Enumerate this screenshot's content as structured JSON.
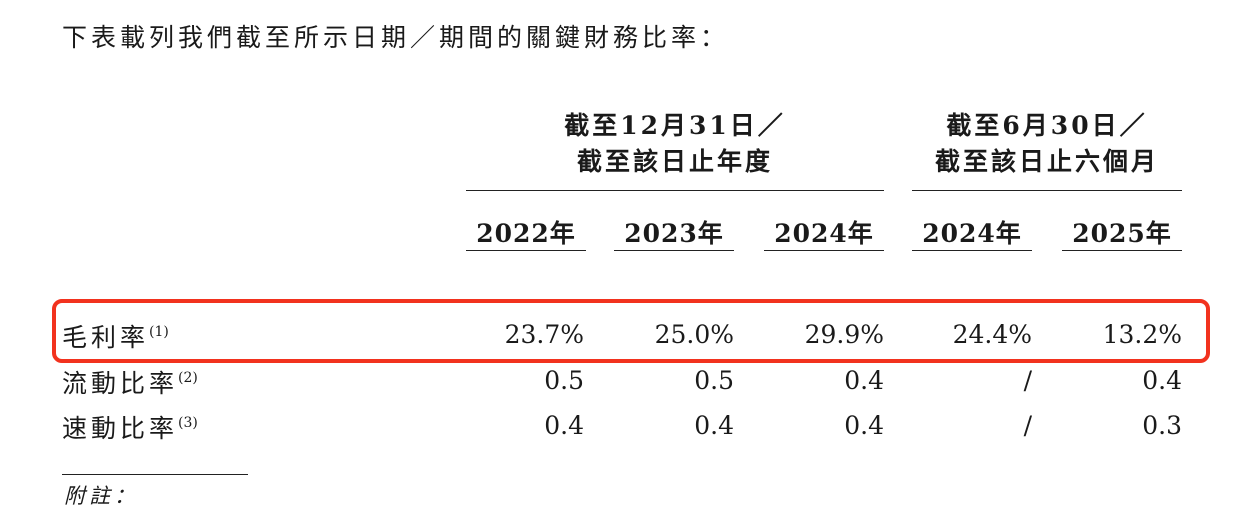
{
  "intro_text": "下表載列我們截至所示日期／期間的關鍵財務比率：",
  "header_groups": [
    {
      "line1": "截至12月31日／",
      "line2": "截至該日止年度"
    },
    {
      "line1": "截至6月30日／",
      "line2": "截至該日止六個月"
    }
  ],
  "years": [
    "2022年",
    "2023年",
    "2024年",
    "2024年",
    "2025年"
  ],
  "rows": [
    {
      "label": "毛利率",
      "note": "(1)",
      "values": [
        "23.7%",
        "25.0%",
        "29.9%",
        "24.4%",
        "13.2%"
      ]
    },
    {
      "label": "流動比率",
      "note": "(2)",
      "values": [
        "0.5",
        "0.5",
        "0.4",
        "/",
        "0.4"
      ]
    },
    {
      "label": "速動比率",
      "note": "(3)",
      "values": [
        "0.4",
        "0.4",
        "0.4",
        "/",
        "0.3"
      ]
    }
  ],
  "footnote_heading": "附註：",
  "highlight_color": "#f2321e"
}
